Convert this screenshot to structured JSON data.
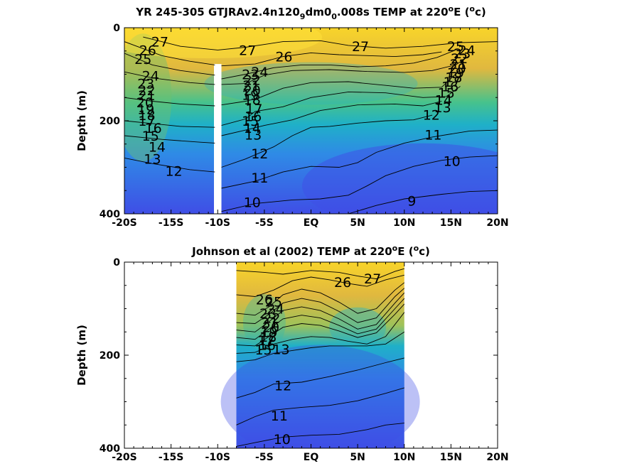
{
  "chart_data": [
    {
      "type": "heatmap",
      "panel": "top",
      "title_parts": [
        "YR 245-305 GTJRAv2.4n120",
        "9",
        "dm0",
        "0",
        ".008s TEMP at 220",
        "o",
        "E (",
        "o",
        "c)"
      ],
      "ylabel": "Depth (m)",
      "xlabel": "",
      "xlim": [
        -20,
        20
      ],
      "ylim": [
        0,
        400
      ],
      "y_inverted": true,
      "x_ticks": [
        "-20S",
        "-15S",
        "-10S",
        "-5S",
        "EQ",
        "5N",
        "10N",
        "15N",
        "20N"
      ],
      "x_tick_values": [
        -20,
        -15,
        -10,
        -5,
        0,
        5,
        10,
        15,
        20
      ],
      "y_ticks": [
        "0",
        "200",
        "400"
      ],
      "y_tick_values": [
        0,
        200,
        400
      ],
      "colormap": [
        "#3f4ee6",
        "#2f8ae6",
        "#1fb0c8",
        "#47c28c",
        "#9ec25a",
        "#e0b83f",
        "#f8d42a"
      ],
      "contour_interval": 1,
      "data_gap": {
        "x_range": [
          -10.4,
          -9.6
        ],
        "depth_from": 78
      },
      "contour_labels": [
        {
          "text": "27",
          "x": -16.2,
          "depth": 30
        },
        {
          "text": "26",
          "x": -17.5,
          "depth": 48
        },
        {
          "text": "25",
          "x": -18.0,
          "depth": 67
        },
        {
          "text": "24",
          "x": -17.2,
          "depth": 103
        },
        {
          "text": "23",
          "x": -17.7,
          "depth": 120
        },
        {
          "text": "22",
          "x": -17.6,
          "depth": 134
        },
        {
          "text": "21",
          "x": -17.6,
          "depth": 145
        },
        {
          "text": "20",
          "x": -17.8,
          "depth": 160
        },
        {
          "text": "19",
          "x": -17.7,
          "depth": 175
        },
        {
          "text": "18",
          "x": -17.6,
          "depth": 188
        },
        {
          "text": "17",
          "x": -17.6,
          "depth": 200
        },
        {
          "text": "16",
          "x": -16.9,
          "depth": 215
        },
        {
          "text": "15",
          "x": -17.2,
          "depth": 232
        },
        {
          "text": "14",
          "x": -16.5,
          "depth": 256
        },
        {
          "text": "13",
          "x": -17.0,
          "depth": 282
        },
        {
          "text": "12",
          "x": -14.7,
          "depth": 308
        },
        {
          "text": "27",
          "x": -6.8,
          "depth": 48
        },
        {
          "text": "26",
          "x": -2.9,
          "depth": 62
        },
        {
          "text": "24",
          "x": -5.5,
          "depth": 95
        },
        {
          "text": "23",
          "x": -6.5,
          "depth": 100
        },
        {
          "text": "22",
          "x": -6.3,
          "depth": 112
        },
        {
          "text": "21",
          "x": -6.4,
          "depth": 124
        },
        {
          "text": "20",
          "x": -6.3,
          "depth": 134
        },
        {
          "text": "19",
          "x": -6.5,
          "depth": 144
        },
        {
          "text": "18",
          "x": -6.3,
          "depth": 154
        },
        {
          "text": "17",
          "x": -6.1,
          "depth": 174
        },
        {
          "text": "16",
          "x": -6.2,
          "depth": 190
        },
        {
          "text": "15",
          "x": -6.5,
          "depth": 200
        },
        {
          "text": "14",
          "x": -6.3,
          "depth": 215
        },
        {
          "text": "13",
          "x": -6.2,
          "depth": 230
        },
        {
          "text": "12",
          "x": -5.5,
          "depth": 270
        },
        {
          "text": "11",
          "x": -5.5,
          "depth": 322
        },
        {
          "text": "10",
          "x": -6.3,
          "depth": 375
        },
        {
          "text": "27",
          "x": 5.3,
          "depth": 40
        },
        {
          "text": "25",
          "x": 15.5,
          "depth": 40
        },
        {
          "text": "24",
          "x": 16.7,
          "depth": 48
        },
        {
          "text": "23",
          "x": 16.2,
          "depth": 55
        },
        {
          "text": "22",
          "x": 15.9,
          "depth": 66
        },
        {
          "text": "21",
          "x": 15.8,
          "depth": 78
        },
        {
          "text": "20",
          "x": 15.7,
          "depth": 87
        },
        {
          "text": "19",
          "x": 15.5,
          "depth": 96
        },
        {
          "text": "18",
          "x": 15.3,
          "depth": 106
        },
        {
          "text": "17",
          "x": 15.1,
          "depth": 116
        },
        {
          "text": "16",
          "x": 14.9,
          "depth": 126
        },
        {
          "text": "15",
          "x": 14.5,
          "depth": 140
        },
        {
          "text": "14",
          "x": 14.2,
          "depth": 155
        },
        {
          "text": "13",
          "x": 14.1,
          "depth": 171
        },
        {
          "text": "12",
          "x": 12.9,
          "depth": 187
        },
        {
          "text": "11",
          "x": 13.1,
          "depth": 230
        },
        {
          "text": "10",
          "x": 15.1,
          "depth": 286
        },
        {
          "text": "9",
          "x": 10.8,
          "depth": 372
        }
      ],
      "contours": [
        {
          "level": 27,
          "x": [
            -18,
            -14,
            -10,
            -7,
            -3,
            1,
            4,
            8,
            12,
            16,
            20
          ],
          "depth": [
            20,
            40,
            48,
            42,
            30,
            28,
            38,
            44,
            40,
            32,
            30
          ]
        },
        {
          "level": 26,
          "x": [
            -20,
            -16,
            -13,
            -10.3
          ],
          "depth": [
            30,
            60,
            72,
            80
          ]
        },
        {
          "level": 26,
          "x": [
            -9.6,
            -6,
            -3,
            0,
            3,
            6,
            9,
            12,
            14
          ],
          "depth": [
            82,
            78,
            62,
            54,
            58,
            60,
            62,
            58,
            52
          ]
        },
        {
          "level": 25,
          "x": [
            -20,
            -17,
            -14,
            -10.3
          ],
          "depth": [
            55,
            80,
            92,
            102
          ]
        },
        {
          "level": 25,
          "x": [
            -9.6,
            -7,
            -4,
            -1,
            2,
            5,
            8,
            11,
            13.5,
            15.5
          ],
          "depth": [
            110,
            100,
            86,
            80,
            80,
            84,
            82,
            76,
            64,
            48
          ]
        },
        {
          "level": 24,
          "x": [
            -20,
            -17,
            -13,
            -10.3
          ],
          "depth": [
            95,
            108,
            118,
            122
          ]
        },
        {
          "level": 24,
          "x": [
            -9.6,
            -7,
            -5,
            -2,
            2,
            6,
            10,
            13,
            15.5,
            17
          ],
          "depth": [
            122,
            120,
            102,
            92,
            90,
            94,
            96,
            92,
            80,
            60
          ]
        },
        {
          "level": 20,
          "x": [
            -20,
            -17,
            -14,
            -10.3
          ],
          "depth": [
            150,
            158,
            164,
            168
          ]
        },
        {
          "level": 20,
          "x": [
            -9.6,
            -7,
            -5.5,
            -3,
            0,
            4,
            8,
            11,
            14,
            16
          ],
          "depth": [
            166,
            158,
            150,
            130,
            118,
            116,
            124,
            130,
            128,
            90
          ]
        },
        {
          "level": 16,
          "x": [
            -20,
            -17,
            -14,
            -10.3
          ],
          "depth": [
            200,
            206,
            212,
            214
          ]
        },
        {
          "level": 16,
          "x": [
            -9.6,
            -7,
            -6,
            -3,
            0,
            4,
            8,
            12,
            14.5,
            16
          ],
          "depth": [
            210,
            196,
            180,
            170,
            150,
            138,
            140,
            150,
            148,
            126
          ]
        },
        {
          "level": 14,
          "x": [
            -20,
            -16,
            -12,
            -10.3
          ],
          "depth": [
            232,
            240,
            246,
            248
          ]
        },
        {
          "level": 14,
          "x": [
            -9.6,
            -7,
            -5,
            -2,
            1,
            5,
            9,
            12,
            14
          ],
          "depth": [
            232,
            220,
            210,
            198,
            178,
            166,
            164,
            168,
            158
          ]
        },
        {
          "level": 12,
          "x": [
            -20,
            -17,
            -13,
            -10.3
          ],
          "depth": [
            280,
            292,
            305,
            310
          ]
        },
        {
          "level": 12,
          "x": [
            -9.6,
            -7,
            -4,
            -2,
            0,
            2,
            5,
            8,
            11,
            13
          ],
          "depth": [
            300,
            282,
            256,
            232,
            214,
            212,
            205,
            200,
            198,
            188
          ]
        },
        {
          "level": 11,
          "x": [
            -9.6,
            -6,
            -3,
            0,
            3,
            5,
            7,
            10,
            13,
            17,
            20
          ],
          "depth": [
            345,
            330,
            310,
            298,
            300,
            290,
            268,
            248,
            235,
            222,
            220
          ]
        },
        {
          "level": 10,
          "x": [
            -9.6,
            -6,
            -2,
            1,
            4,
            6,
            8,
            11,
            14,
            17,
            20
          ],
          "depth": [
            395,
            378,
            370,
            368,
            360,
            340,
            318,
            298,
            285,
            278,
            275
          ]
        },
        {
          "level": 9,
          "x": [
            4,
            7,
            10,
            14,
            17,
            20
          ],
          "depth": [
            400,
            382,
            368,
            358,
            352,
            350
          ]
        }
      ]
    },
    {
      "type": "heatmap",
      "panel": "bottom",
      "title_parts": [
        "Johnson et al (2002) TEMP at 220",
        "o",
        "E (",
        "o",
        "c)"
      ],
      "ylabel": "Depth (m)",
      "xlabel": "",
      "xlim": [
        -20,
        20
      ],
      "ylim": [
        0,
        400
      ],
      "y_inverted": true,
      "data_x_range": [
        -8,
        10
      ],
      "x_ticks": [
        "-20S",
        "-15S",
        "-10S",
        "-5S",
        "EQ",
        "5N",
        "10N",
        "15N",
        "20N"
      ],
      "x_tick_values": [
        -20,
        -15,
        -10,
        -5,
        0,
        5,
        10,
        15,
        20
      ],
      "y_ticks": [
        "0",
        "200",
        "400"
      ],
      "y_tick_values": [
        0,
        200,
        400
      ],
      "colormap": [
        "#3f4ee6",
        "#2f8ae6",
        "#1fb0c8",
        "#47c28c",
        "#9ec25a",
        "#e0b83f",
        "#f8d42a"
      ],
      "contour_interval": 1,
      "contour_labels": [
        {
          "text": "27",
          "x": 6.6,
          "depth": 35
        },
        {
          "text": "26",
          "x": 3.4,
          "depth": 43
        },
        {
          "text": "26",
          "x": -5.0,
          "depth": 80
        },
        {
          "text": "25",
          "x": -4.0,
          "depth": 85
        },
        {
          "text": "24",
          "x": -3.8,
          "depth": 100
        },
        {
          "text": "23",
          "x": -4.6,
          "depth": 110
        },
        {
          "text": "22",
          "x": -4.2,
          "depth": 120
        },
        {
          "text": "21",
          "x": -4.4,
          "depth": 130
        },
        {
          "text": "20",
          "x": -4.3,
          "depth": 140
        },
        {
          "text": "19",
          "x": -4.5,
          "depth": 150
        },
        {
          "text": "18",
          "x": -4.6,
          "depth": 160
        },
        {
          "text": "17",
          "x": -4.8,
          "depth": 168
        },
        {
          "text": "16",
          "x": -4.7,
          "depth": 178
        },
        {
          "text": "15",
          "x": -5.1,
          "depth": 188
        },
        {
          "text": "13",
          "x": -3.2,
          "depth": 187
        },
        {
          "text": "12",
          "x": -3.0,
          "depth": 265
        },
        {
          "text": "11",
          "x": -3.4,
          "depth": 330
        },
        {
          "text": "10",
          "x": -3.1,
          "depth": 380
        }
      ],
      "contours": [
        {
          "level": 27,
          "x": [
            -8,
            -5,
            -3,
            0,
            3,
            5,
            7,
            9,
            10
          ],
          "depth": [
            18,
            22,
            26,
            18,
            22,
            30,
            36,
            20,
            14
          ]
        },
        {
          "level": 26,
          "x": [
            -8,
            -6,
            -4,
            -2,
            0,
            2,
            4,
            6,
            8,
            10
          ],
          "depth": [
            70,
            74,
            60,
            40,
            32,
            38,
            46,
            52,
            38,
            28
          ]
        },
        {
          "level": 24,
          "x": [
            -8,
            -6,
            -4.5,
            -3,
            -1,
            1,
            3,
            5,
            7,
            9,
            10
          ],
          "depth": [
            110,
            114,
            96,
            70,
            58,
            66,
            86,
            110,
            100,
            60,
            44
          ]
        },
        {
          "level": 22,
          "x": [
            -8,
            -6,
            -4.5,
            -3,
            -1,
            1,
            3,
            5,
            7,
            9,
            10
          ],
          "depth": [
            130,
            132,
            112,
            88,
            78,
            86,
            106,
            130,
            120,
            74,
            56
          ]
        },
        {
          "level": 20,
          "x": [
            -8,
            -6,
            -4.5,
            -3,
            -1,
            1,
            3,
            5,
            7,
            9,
            10
          ],
          "depth": [
            146,
            150,
            128,
            104,
            96,
            104,
            122,
            144,
            134,
            88,
            66
          ]
        },
        {
          "level": 18,
          "x": [
            -8,
            -6,
            -4.5,
            -3,
            -1,
            1,
            3,
            5,
            7,
            9,
            10
          ],
          "depth": [
            162,
            166,
            144,
            122,
            114,
            120,
            136,
            154,
            144,
            100,
            78
          ]
        },
        {
          "level": 16,
          "x": [
            -8,
            -6,
            -4.5,
            -3,
            -1,
            1,
            3,
            5,
            7,
            9,
            10
          ],
          "depth": [
            178,
            180,
            160,
            140,
            132,
            136,
            148,
            162,
            152,
            112,
            90
          ]
        },
        {
          "level": 14,
          "x": [
            -8,
            -6,
            -4,
            -2,
            0,
            2,
            4,
            6,
            8,
            10
          ],
          "depth": [
            196,
            194,
            176,
            166,
            160,
            162,
            170,
            176,
            160,
            108
          ]
        },
        {
          "level": 13,
          "x": [
            -8,
            -6,
            -4,
            -2,
            0,
            2,
            4,
            6,
            8,
            10
          ],
          "depth": [
            214,
            210,
            196,
            190,
            184,
            180,
            180,
            180,
            176,
            150
          ]
        },
        {
          "level": 12,
          "x": [
            -8,
            -6,
            -4,
            -1,
            2,
            5,
            8,
            10
          ],
          "depth": [
            292,
            280,
            262,
            258,
            246,
            232,
            216,
            206
          ]
        },
        {
          "level": 11,
          "x": [
            -8,
            -6,
            -4,
            -1,
            2,
            5,
            8,
            10
          ],
          "depth": [
            350,
            332,
            318,
            312,
            308,
            298,
            282,
            270
          ]
        },
        {
          "level": 10,
          "x": [
            -8,
            -6,
            -3,
            0,
            3,
            6,
            8,
            10
          ],
          "depth": [
            396,
            388,
            376,
            372,
            370,
            360,
            350,
            346
          ]
        }
      ]
    }
  ]
}
